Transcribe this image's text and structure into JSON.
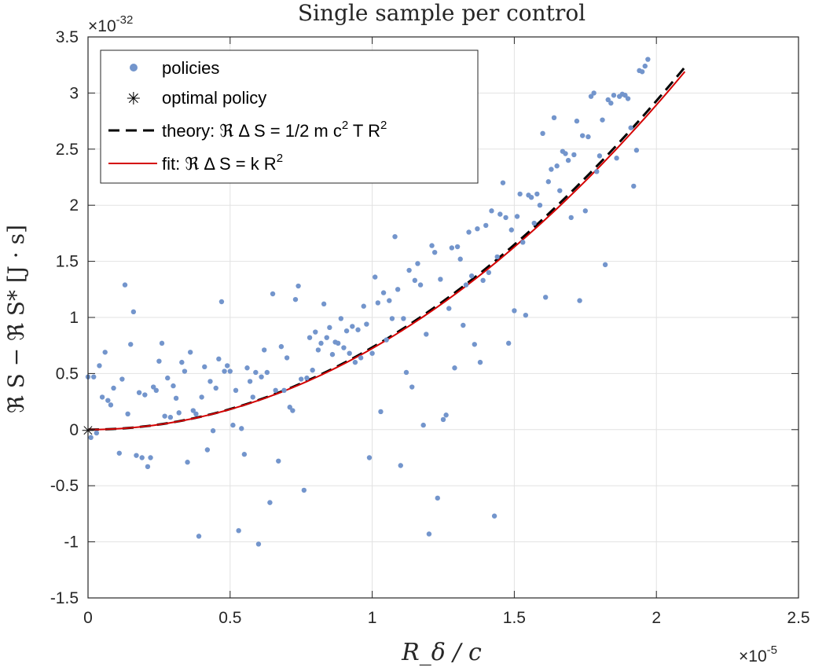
{
  "chart_data": {
    "type": "scatter",
    "title": "Single sample per control",
    "xlabel": "R_δ / c",
    "ylabel": "ℜ S − ℜ S* [J · s]",
    "x_exponent_label": "×10",
    "x_exponent": "-5",
    "y_exponent_label": "×10",
    "y_exponent": "-32",
    "xlim": [
      0,
      2.5
    ],
    "ylim": [
      -1.5,
      3.5
    ],
    "xticks": [
      "0",
      "0.5",
      "1",
      "1.5",
      "2",
      "2.5"
    ],
    "yticks": [
      "-1.5",
      "-1",
      "-0.5",
      "0",
      "0.5",
      "1",
      "1.5",
      "2",
      "2.5",
      "3",
      "3.5"
    ],
    "grid": true,
    "legend_position": "top-left",
    "legend": [
      {
        "text": "policies",
        "marker": "dot"
      },
      {
        "text": "optimal policy",
        "marker": "asterisk"
      },
      {
        "text": "theory: ℜ Δ S = 1/2 m c",
        "sup1": "2",
        "text2": " T R",
        "sup2": "2",
        "marker": "dashed-line"
      },
      {
        "text": "fit: ℜ Δ S = k R",
        "sup1": "2",
        "marker": "solid-line"
      }
    ],
    "colors": {
      "policies": "#7395CC",
      "optimal": "#000000",
      "theory": "#000000",
      "fit": "#D40000"
    },
    "series": [
      {
        "name": "policies",
        "points": [
          [
            0.0,
            0.47
          ],
          [
            0.01,
            -0.07
          ],
          [
            0.02,
            0.47
          ],
          [
            0.03,
            -0.03
          ],
          [
            0.04,
            0.57
          ],
          [
            0.05,
            0.29
          ],
          [
            0.06,
            0.69
          ],
          [
            0.07,
            0.26
          ],
          [
            0.08,
            0.22
          ],
          [
            0.09,
            0.37
          ],
          [
            0.11,
            -0.21
          ],
          [
            0.12,
            0.45
          ],
          [
            0.13,
            1.29
          ],
          [
            0.14,
            0.14
          ],
          [
            0.15,
            0.76
          ],
          [
            0.16,
            1.05
          ],
          [
            0.17,
            -0.23
          ],
          [
            0.18,
            0.33
          ],
          [
            0.19,
            -0.25
          ],
          [
            0.2,
            0.31
          ],
          [
            0.21,
            -0.33
          ],
          [
            0.22,
            -0.25
          ],
          [
            0.23,
            0.38
          ],
          [
            0.24,
            0.35
          ],
          [
            0.25,
            0.61
          ],
          [
            0.26,
            0.77
          ],
          [
            0.27,
            0.12
          ],
          [
            0.28,
            0.46
          ],
          [
            0.29,
            0.11
          ],
          [
            0.3,
            0.39
          ],
          [
            0.31,
            0.28
          ],
          [
            0.32,
            0.15
          ],
          [
            0.33,
            0.6
          ],
          [
            0.34,
            0.52
          ],
          [
            0.35,
            -0.29
          ],
          [
            0.36,
            0.69
          ],
          [
            0.37,
            0.17
          ],
          [
            0.38,
            0.14
          ],
          [
            0.39,
            -0.95
          ],
          [
            0.4,
            0.29
          ],
          [
            0.41,
            0.56
          ],
          [
            0.42,
            -0.18
          ],
          [
            0.43,
            0.43
          ],
          [
            0.44,
            -0.01
          ],
          [
            0.45,
            0.37
          ],
          [
            0.46,
            0.63
          ],
          [
            0.47,
            1.14
          ],
          [
            0.48,
            0.52
          ],
          [
            0.49,
            0.57
          ],
          [
            0.5,
            0.52
          ],
          [
            0.51,
            0.04
          ],
          [
            0.52,
            0.35
          ],
          [
            0.53,
            -0.9
          ],
          [
            0.54,
            0.01
          ],
          [
            0.55,
            -0.22
          ],
          [
            0.56,
            0.55
          ],
          [
            0.57,
            0.43
          ],
          [
            0.58,
            0.29
          ],
          [
            0.59,
            0.51
          ],
          [
            0.6,
            -1.02
          ],
          [
            0.61,
            0.47
          ],
          [
            0.62,
            0.71
          ],
          [
            0.63,
            0.51
          ],
          [
            0.64,
            -0.65
          ],
          [
            0.65,
            1.21
          ],
          [
            0.66,
            0.35
          ],
          [
            0.67,
            -0.28
          ],
          [
            0.68,
            0.74
          ],
          [
            0.69,
            0.35
          ],
          [
            0.7,
            0.64
          ],
          [
            0.71,
            0.2
          ],
          [
            0.72,
            0.17
          ],
          [
            0.73,
            1.16
          ],
          [
            0.74,
            1.28
          ],
          [
            0.75,
            0.45
          ],
          [
            0.76,
            -0.54
          ],
          [
            0.77,
            0.46
          ],
          [
            0.78,
            0.82
          ],
          [
            0.79,
            0.53
          ],
          [
            0.8,
            0.87
          ],
          [
            0.81,
            0.71
          ],
          [
            0.82,
            0.77
          ],
          [
            0.83,
            1.12
          ],
          [
            0.84,
            0.82
          ],
          [
            0.85,
            0.91
          ],
          [
            0.86,
            0.67
          ],
          [
            0.87,
            0.78
          ],
          [
            0.88,
            0.77
          ],
          [
            0.89,
            0.99
          ],
          [
            0.9,
            0.73
          ],
          [
            0.91,
            0.88
          ],
          [
            0.92,
            0.68
          ],
          [
            0.93,
            0.92
          ],
          [
            0.94,
            0.6
          ],
          [
            0.95,
            0.89
          ],
          [
            0.96,
            0.64
          ],
          [
            0.97,
            1.1
          ],
          [
            0.98,
            0.94
          ],
          [
            0.99,
            -0.25
          ],
          [
            1.0,
            0.68
          ],
          [
            1.01,
            1.36
          ],
          [
            1.02,
            1.13
          ],
          [
            1.03,
            0.16
          ],
          [
            1.04,
            1.22
          ],
          [
            1.05,
            0.8
          ],
          [
            1.06,
            1.15
          ],
          [
            1.07,
            0.99
          ],
          [
            1.08,
            1.72
          ],
          [
            1.09,
            1.25
          ],
          [
            1.1,
            -0.32
          ],
          [
            1.11,
            0.99
          ],
          [
            1.12,
            0.51
          ],
          [
            1.13,
            1.42
          ],
          [
            1.14,
            0.38
          ],
          [
            1.15,
            1.33
          ],
          [
            1.16,
            1.48
          ],
          [
            1.17,
            1.29
          ],
          [
            1.18,
            0.04
          ],
          [
            1.19,
            0.85
          ],
          [
            1.2,
            -0.93
          ],
          [
            1.21,
            1.64
          ],
          [
            1.22,
            1.58
          ],
          [
            1.23,
            -0.61
          ],
          [
            1.24,
            1.34
          ],
          [
            1.25,
            0.09
          ],
          [
            1.26,
            0.13
          ],
          [
            1.27,
            1.08
          ],
          [
            1.28,
            1.62
          ],
          [
            1.29,
            0.55
          ],
          [
            1.3,
            1.63
          ],
          [
            1.31,
            1.52
          ],
          [
            1.32,
            0.93
          ],
          [
            1.33,
            1.29
          ],
          [
            1.34,
            1.76
          ],
          [
            1.35,
            1.37
          ],
          [
            1.36,
            0.76
          ],
          [
            1.37,
            1.79
          ],
          [
            1.38,
            0.6
          ],
          [
            1.39,
            1.33
          ],
          [
            1.4,
            1.82
          ],
          [
            1.41,
            1.4
          ],
          [
            1.42,
            1.95
          ],
          [
            1.43,
            -0.77
          ],
          [
            1.44,
            1.54
          ],
          [
            1.45,
            1.92
          ],
          [
            1.46,
            2.2
          ],
          [
            1.47,
            1.89
          ],
          [
            1.48,
            0.77
          ],
          [
            1.49,
            1.78
          ],
          [
            1.5,
            1.06
          ],
          [
            1.51,
            1.9
          ],
          [
            1.52,
            2.1
          ],
          [
            1.53,
            1.67
          ],
          [
            1.54,
            1.02
          ],
          [
            1.55,
            2.09
          ],
          [
            1.56,
            2.07
          ],
          [
            1.57,
            1.84
          ],
          [
            1.58,
            2.1
          ],
          [
            1.59,
            2.0
          ],
          [
            1.6,
            2.64
          ],
          [
            1.61,
            1.18
          ],
          [
            1.62,
            2.21
          ],
          [
            1.63,
            2.32
          ],
          [
            1.64,
            2.78
          ],
          [
            1.65,
            2.35
          ],
          [
            1.66,
            2.13
          ],
          [
            1.67,
            2.48
          ],
          [
            1.68,
            2.46
          ],
          [
            1.69,
            2.4
          ],
          [
            1.7,
            1.89
          ],
          [
            1.71,
            2.45
          ],
          [
            1.72,
            2.75
          ],
          [
            1.73,
            1.15
          ],
          [
            1.74,
            2.62
          ],
          [
            1.75,
            1.95
          ],
          [
            1.76,
            2.61
          ],
          [
            1.77,
            2.97
          ],
          [
            1.78,
            3.0
          ],
          [
            1.79,
            2.3
          ],
          [
            1.8,
            2.44
          ],
          [
            1.81,
            2.76
          ],
          [
            1.82,
            1.47
          ],
          [
            1.83,
            2.94
          ],
          [
            1.84,
            2.91
          ],
          [
            1.85,
            2.98
          ],
          [
            1.86,
            2.42
          ],
          [
            1.87,
            2.97
          ],
          [
            1.88,
            2.99
          ],
          [
            1.89,
            2.98
          ],
          [
            1.9,
            2.95
          ],
          [
            1.91,
            2.69
          ],
          [
            1.92,
            2.17
          ],
          [
            1.93,
            2.49
          ],
          [
            1.94,
            3.2
          ],
          [
            1.95,
            3.19
          ],
          [
            1.96,
            3.24
          ],
          [
            1.97,
            3.3
          ]
        ]
      },
      {
        "name": "optimal policy",
        "points": [
          [
            0,
            0
          ]
        ]
      },
      {
        "name": "theory",
        "coef": 0.7325,
        "x_range": [
          0,
          2.1
        ]
      },
      {
        "name": "fit",
        "coef": 0.7235,
        "x_range": [
          0,
          2.1
        ]
      }
    ]
  }
}
